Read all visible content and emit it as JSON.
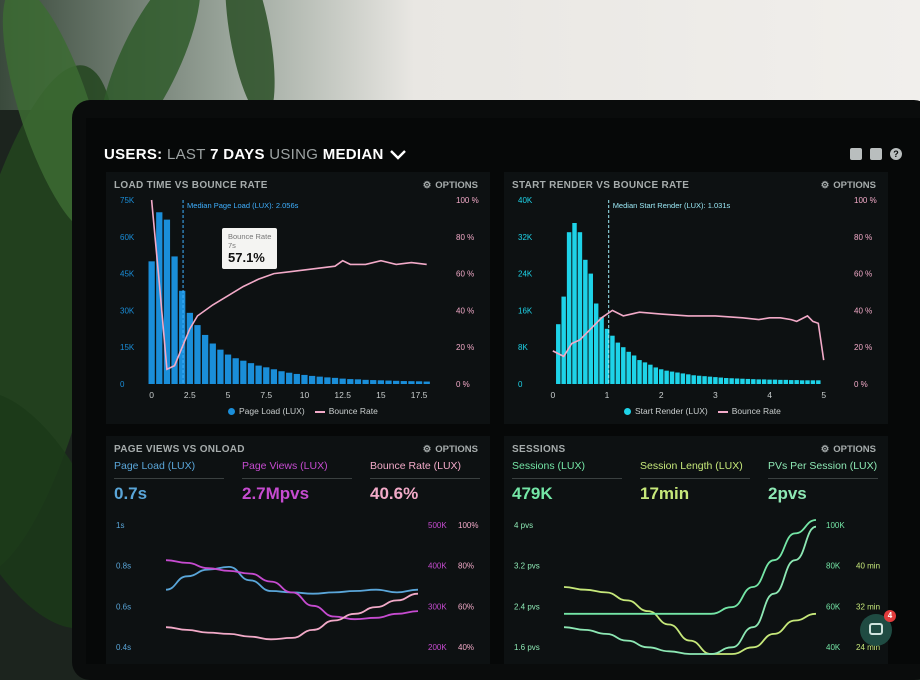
{
  "header": {
    "part1": "USERS:",
    "part2": "LAST",
    "part3": "7 DAYS",
    "part4": "USING",
    "part5": "MEDIAN"
  },
  "colors": {
    "blue": "#1a8ed9",
    "cyan": "#1ed3e8",
    "pink": "#f2aac8",
    "purple": "#c64bd0",
    "green": "#74e6a6",
    "lime": "#c6e87a",
    "steel": "#5aa6d9"
  },
  "panels": {
    "load_time": {
      "title": "LOAD TIME VS BOUNCE RATE",
      "options_label": "OPTIONS",
      "median_label": "Median Page Load (LUX): 2.056s",
      "tooltip": {
        "label": "Bounce Rate",
        "sub": "7s",
        "value": "57.1%"
      },
      "legend": [
        "Page Load (LUX)",
        "Bounce Rate"
      ]
    },
    "start_render": {
      "title": "START RENDER VS BOUNCE RATE",
      "options_label": "OPTIONS",
      "median_label": "Median Start Render (LUX): 1.031s",
      "legend": [
        "Start Render (LUX)",
        "Bounce Rate"
      ]
    },
    "page_views": {
      "title": "PAGE VIEWS VS ONLOAD",
      "options_label": "OPTIONS",
      "metrics": [
        {
          "label": "Page Load (LUX)",
          "value": "0.7s"
        },
        {
          "label": "Page Views (LUX)",
          "value": "2.7Mpvs"
        },
        {
          "label": "Bounce Rate (LUX)",
          "value": "40.6%"
        }
      ]
    },
    "sessions": {
      "title": "SESSIONS",
      "options_label": "OPTIONS",
      "metrics": [
        {
          "label": "Sessions (LUX)",
          "value": "479K"
        },
        {
          "label": "Session Length (LUX)",
          "value": "17min"
        },
        {
          "label": "PVs Per Session (LUX)",
          "value": "2pvs"
        }
      ]
    }
  },
  "chat": {
    "badge": "4"
  },
  "chart_data": [
    {
      "type": "bar",
      "title": "LOAD TIME VS BOUNCE RATE",
      "x_ticks": [
        "0",
        "2.5",
        "5",
        "7.5",
        "10",
        "12.5",
        "15",
        "17.5"
      ],
      "y_ticks_left": [
        "0",
        "15K",
        "30K",
        "45K",
        "60K",
        "75K"
      ],
      "y_ticks_right": [
        "0 %",
        "20 %",
        "40 %",
        "60 %",
        "80 %",
        "100 %"
      ],
      "xlim": [
        -0.5,
        19
      ],
      "ylim": [
        0,
        75000
      ],
      "bar_width": 0.5,
      "bars_x": [
        0,
        0.5,
        1,
        1.5,
        2,
        2.5,
        3,
        3.5,
        4,
        4.5,
        5,
        5.5,
        6,
        6.5,
        7,
        7.5,
        8,
        8.5,
        9,
        9.5,
        10,
        10.5,
        11,
        11.5,
        12,
        12.5,
        13,
        13.5,
        14,
        14.5,
        15,
        15.5,
        16,
        16.5,
        17,
        17.5,
        18
      ],
      "bars_values": [
        50000,
        70000,
        67000,
        52000,
        38000,
        29000,
        24000,
        20000,
        16500,
        14000,
        12000,
        10500,
        9500,
        8500,
        7500,
        6800,
        6000,
        5200,
        4600,
        4100,
        3700,
        3300,
        3000,
        2700,
        2500,
        2200,
        2000,
        1900,
        1700,
        1600,
        1500,
        1400,
        1300,
        1200,
        1150,
        1100,
        1000
      ],
      "series": [
        {
          "name": "Bounce Rate",
          "x": [
            0,
            0.5,
            1,
            1.5,
            2,
            2.5,
            3,
            4,
            5,
            6,
            7,
            8,
            9,
            10,
            11,
            12,
            12.5,
            13,
            14,
            15,
            16,
            17,
            18
          ],
          "y": [
            100,
            55,
            8,
            10,
            20,
            30,
            37,
            43,
            48,
            53,
            57,
            60,
            61,
            62,
            63,
            64,
            67,
            65,
            65,
            67,
            65,
            66,
            65
          ]
        }
      ],
      "annotation": {
        "x": 2.056,
        "label": "Median Page Load (LUX): 2.056s"
      }
    },
    {
      "type": "bar",
      "title": "START RENDER VS BOUNCE RATE",
      "x_ticks": [
        "0",
        "1",
        "2",
        "3",
        "4",
        "5"
      ],
      "y_ticks_left": [
        "0",
        "8K",
        "16K",
        "24K",
        "32K",
        "40K"
      ],
      "y_ticks_right": [
        "0 %",
        "20 %",
        "40 %",
        "60 %",
        "80 %",
        "100 %"
      ],
      "xlim": [
        -0.2,
        5.3
      ],
      "ylim": [
        0,
        40000
      ],
      "bar_width": 0.1,
      "bars_x": [
        0.1,
        0.2,
        0.3,
        0.4,
        0.5,
        0.6,
        0.7,
        0.8,
        0.9,
        1.0,
        1.1,
        1.2,
        1.3,
        1.4,
        1.5,
        1.6,
        1.7,
        1.8,
        1.9,
        2.0,
        2.1,
        2.2,
        2.3,
        2.4,
        2.5,
        2.6,
        2.7,
        2.8,
        2.9,
        3.0,
        3.1,
        3.2,
        3.3,
        3.4,
        3.5,
        3.6,
        3.7,
        3.8,
        3.9,
        4.0,
        4.1,
        4.2,
        4.3,
        4.4,
        4.5,
        4.6,
        4.7,
        4.8,
        4.9
      ],
      "bars_values": [
        13000,
        19000,
        33000,
        35000,
        33000,
        27000,
        24000,
        17500,
        14500,
        12000,
        10500,
        9000,
        8000,
        7000,
        6200,
        5200,
        4700,
        4200,
        3600,
        3200,
        2900,
        2700,
        2500,
        2300,
        2100,
        1900,
        1800,
        1700,
        1600,
        1500,
        1400,
        1300,
        1250,
        1200,
        1150,
        1100,
        1050,
        1000,
        1000,
        950,
        950,
        900,
        900,
        850,
        850,
        800,
        800,
        800,
        800
      ],
      "series": [
        {
          "name": "Bounce Rate",
          "x": [
            0,
            0.2,
            0.35,
            0.5,
            0.7,
            0.9,
            1.1,
            1.3,
            1.6,
            2.0,
            2.5,
            3.0,
            3.5,
            3.8,
            4.0,
            4.2,
            4.4,
            4.5,
            4.7,
            4.8,
            4.9,
            5.0
          ],
          "y": [
            18,
            15,
            22,
            24,
            30,
            36,
            40,
            37,
            39,
            38,
            37,
            37,
            36,
            35,
            36,
            36,
            35,
            34,
            37,
            34,
            33,
            13
          ]
        }
      ],
      "annotation": {
        "x": 1.031,
        "label": "Median Start Render (LUX): 1.031s"
      }
    },
    {
      "type": "line",
      "title": "PAGE VIEWS VS ONLOAD",
      "y_ticks_left": [
        "0.4s",
        "0.6s",
        "0.8s",
        "1s"
      ],
      "y_ticks_right_a": [
        "200K",
        "300K",
        "400K",
        "500K"
      ],
      "y_ticks_right_b": [
        "40%",
        "60%",
        "80%",
        "100%"
      ],
      "xlim": [
        0,
        12
      ],
      "ylim": [
        0,
        100
      ],
      "series": [
        {
          "name": "Page Load (LUX)",
          "x": [
            0,
            1,
            2,
            3,
            4,
            5,
            6,
            7,
            8,
            9,
            10,
            11,
            12
          ],
          "y": [
            48,
            58,
            63,
            65,
            55,
            47,
            46,
            45,
            46,
            47,
            48,
            46,
            48
          ]
        },
        {
          "name": "Page Views (LUX)",
          "x": [
            0,
            1,
            2,
            3,
            4,
            5,
            6,
            7,
            8,
            9,
            10,
            11,
            12
          ],
          "y": [
            70,
            68,
            64,
            62,
            60,
            54,
            46,
            36,
            28,
            26,
            27,
            30,
            32
          ]
        },
        {
          "name": "Bounce Rate (LUX)",
          "x": [
            0,
            1,
            2,
            3,
            4,
            5,
            6,
            7,
            8,
            9,
            10,
            11,
            12
          ],
          "y": [
            20,
            18,
            16,
            15,
            13,
            11,
            12,
            18,
            25,
            30,
            35,
            40,
            45
          ]
        }
      ]
    },
    {
      "type": "line",
      "title": "SESSIONS",
      "y_ticks_left": [
        "1.6 pvs",
        "2.4 pvs",
        "3.2 pvs",
        "4 pvs"
      ],
      "y_ticks_right_a": [
        "40K",
        "60K",
        "80K",
        "100K"
      ],
      "y_ticks_right_b": [
        "24 min",
        "32 min",
        "40 min"
      ],
      "xlim": [
        0,
        12
      ],
      "ylim": [
        0,
        100
      ],
      "series": [
        {
          "name": "Sessions (LUX)",
          "x": [
            0,
            1,
            2,
            3,
            4,
            5,
            6,
            7,
            8,
            9,
            10,
            11,
            12
          ],
          "y": [
            50,
            48,
            46,
            40,
            32,
            22,
            10,
            0,
            0,
            5,
            15,
            25,
            30
          ]
        },
        {
          "name": "Session Length (LUX)",
          "x": [
            0,
            1,
            2,
            3,
            4,
            5,
            6,
            7,
            8,
            9,
            10,
            11,
            12
          ],
          "y": [
            30,
            30,
            30,
            30,
            30,
            30,
            30,
            30,
            35,
            50,
            70,
            90,
            100
          ]
        },
        {
          "name": "PVs Per Session (LUX)",
          "x": [
            0,
            1,
            2,
            3,
            4,
            5,
            6,
            7,
            8,
            9,
            10,
            11,
            12
          ],
          "y": [
            20,
            18,
            15,
            10,
            5,
            2,
            0,
            0,
            5,
            20,
            45,
            70,
            95
          ]
        }
      ]
    }
  ]
}
